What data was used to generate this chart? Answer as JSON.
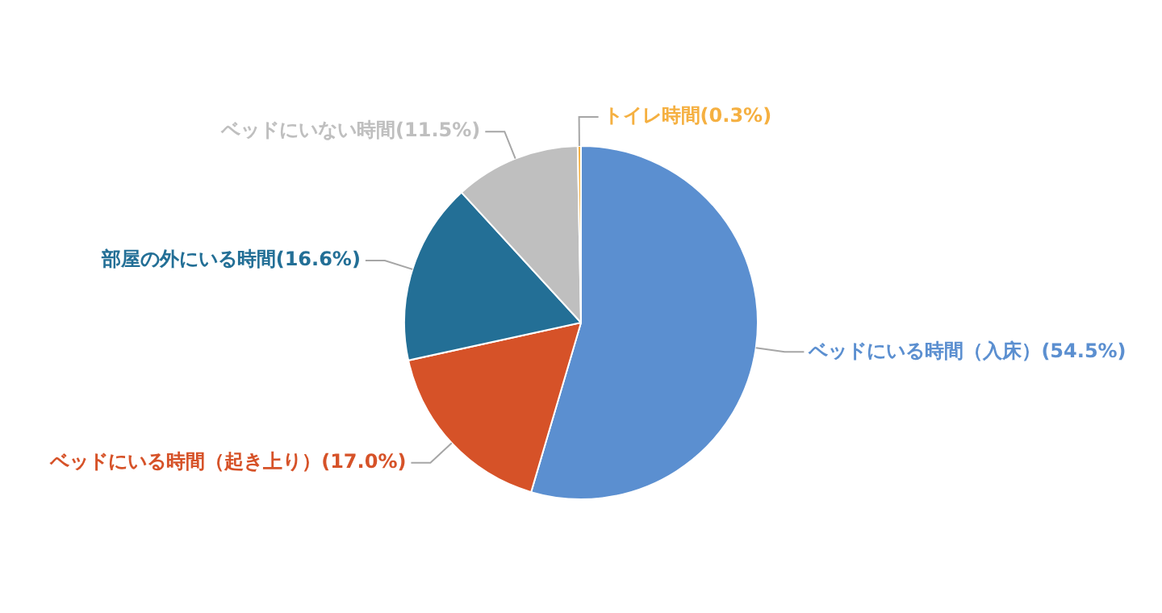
{
  "chart_data": {
    "type": "pie",
    "categories": [
      "ベッドにいる時間（入床）",
      "ベッドにいる時間（起き上り）",
      "部屋の外にいる時間",
      "ベッドにいない時間",
      "トイレ時間"
    ],
    "values": [
      54.5,
      17.0,
      16.6,
      11.5,
      0.3
    ],
    "value_labels": [
      "(54.5%)",
      "(17.0%)",
      "(16.6%)",
      "(11.5%)",
      "(0.3%)"
    ],
    "colors": [
      "#5b8fd0",
      "#d65228",
      "#236f96",
      "#bfbfbf",
      "#f5b041"
    ],
    "legend": false
  }
}
